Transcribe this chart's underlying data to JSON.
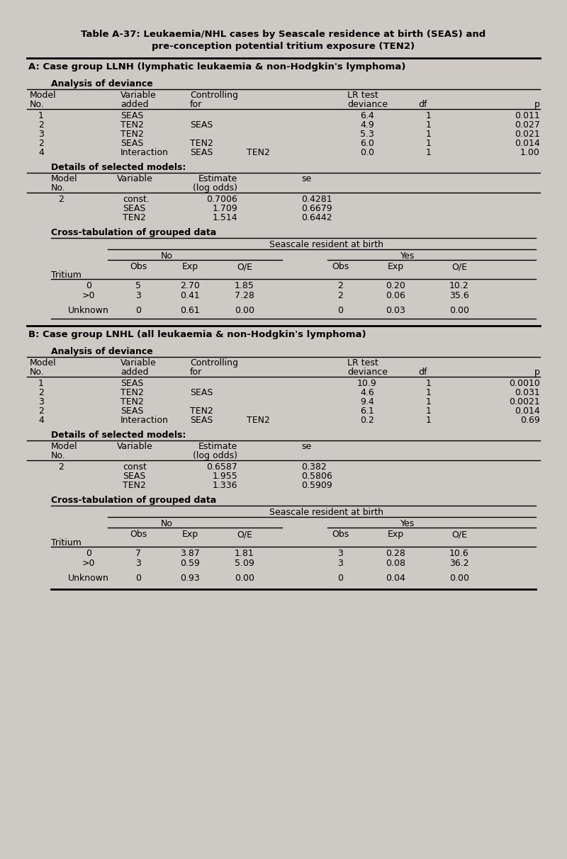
{
  "bg_color": "#cdc9c5",
  "title_line1": "Table A-37: Leukaemia/NHL cases by Seascale residence at birth (SEAS) and",
  "title_line2": "pre-conception potential tritium exposure (TEN2)",
  "section_a_header": "A: Case group LLNH (lymphatic leukaemia & non-Hodgkin's lymphoma)",
  "section_b_header": "B: Case group LNHL (all leukaemia & non-Hodgkin's lymphoma)",
  "deviance_header": "Analysis of deviance",
  "details_header": "Details of selected models:",
  "cross_header": "Cross-tabulation of grouped data",
  "cross_sub_header": "Seascale resident at birth",
  "deviance_A": [
    [
      "1",
      "SEAS",
      "",
      "",
      "6.4",
      "1",
      "0.011"
    ],
    [
      "2",
      "TEN2",
      "SEAS",
      "",
      "4.9",
      "1",
      "0.027"
    ],
    [
      "3",
      "TEN2",
      "",
      "",
      "5.3",
      "1",
      "0.021"
    ],
    [
      "2",
      "SEAS",
      "TEN2",
      "",
      "6.0",
      "1",
      "0.014"
    ],
    [
      "4",
      "Interaction",
      "SEAS",
      "TEN2",
      "0.0",
      "1",
      "1.00"
    ]
  ],
  "deviance_B": [
    [
      "1",
      "SEAS",
      "",
      "",
      "10.9",
      "1",
      "0.0010"
    ],
    [
      "2",
      "TEN2",
      "SEAS",
      "",
      "4.6",
      "1",
      "0.031"
    ],
    [
      "3",
      "TEN2",
      "",
      "",
      "9.4",
      "1",
      "0.0021"
    ],
    [
      "2",
      "SEAS",
      "TEN2",
      "",
      "6.1",
      "1",
      "0.014"
    ],
    [
      "4",
      "Interaction",
      "SEAS",
      "TEN2",
      "0.2",
      "1",
      "0.69"
    ]
  ],
  "details_A": [
    [
      "2",
      "const.",
      "0.7006",
      "0.4281"
    ],
    [
      "",
      "SEAS",
      "1.709",
      "0.6679"
    ],
    [
      "",
      "TEN2",
      "1.514",
      "0.6442"
    ]
  ],
  "details_B": [
    [
      "2",
      "const",
      "0.6587",
      "0.382"
    ],
    [
      "",
      "SEAS",
      "1.955",
      "0.5806"
    ],
    [
      "",
      "TEN2",
      "1.336",
      "0.5909"
    ]
  ],
  "cross_A": [
    [
      "0",
      "5",
      "2.70",
      "1.85",
      "2",
      "0.20",
      "10.2"
    ],
    [
      ">0",
      "3",
      "0.41",
      "7.28",
      "2",
      "0.06",
      "35.6"
    ],
    [
      "Unknown",
      "0",
      "0.61",
      "0.00",
      "0",
      "0.03",
      "0.00"
    ]
  ],
  "cross_B": [
    [
      "0",
      "7",
      "3.87",
      "1.81",
      "3",
      "0.28",
      "10.6"
    ],
    [
      ">0",
      "3",
      "0.59",
      "5.09",
      "3",
      "0.08",
      "36.2"
    ],
    [
      "Unknown",
      "0",
      "0.93",
      "0.00",
      "0",
      "0.04",
      "0.00"
    ]
  ]
}
